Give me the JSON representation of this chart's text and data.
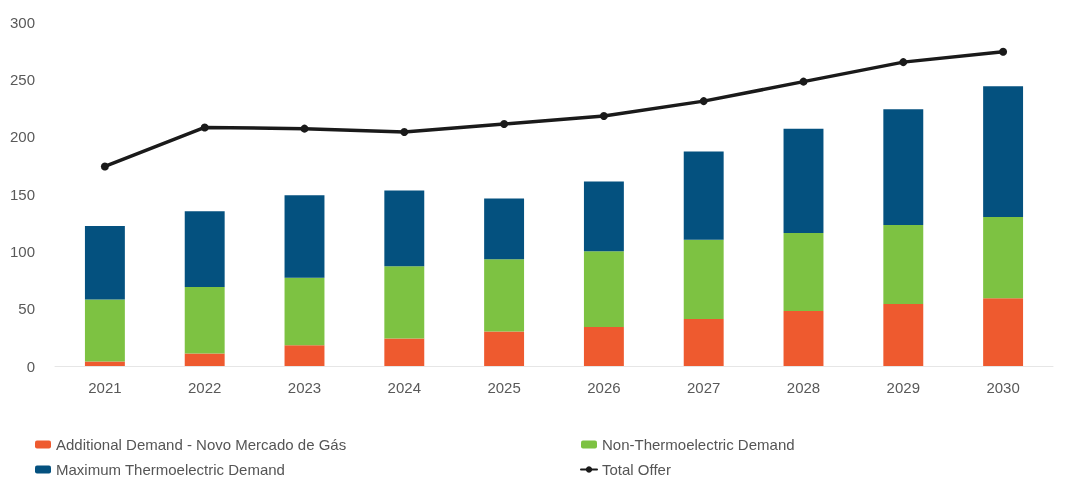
{
  "chart_data": {
    "type": "bar",
    "stacked": true,
    "categories": [
      "2021",
      "2022",
      "2023",
      "2024",
      "2025",
      "2026",
      "2027",
      "2028",
      "2029",
      "2030"
    ],
    "series": [
      {
        "name": "Additional Demand - Novo Mercado de Gás",
        "color": "#ee5a2f",
        "values": [
          4,
          11,
          18,
          24,
          30,
          34,
          41,
          48,
          54,
          59
        ]
      },
      {
        "name": "Non-Thermoelectric Demand",
        "color": "#7dc242",
        "values": [
          54,
          58,
          59,
          63,
          63,
          66,
          69,
          68,
          69,
          71
        ]
      },
      {
        "name": "Maximum Thermoelectric Demand",
        "color": "#04517f",
        "values": [
          64,
          66,
          72,
          66,
          53,
          61,
          77,
          91,
          101,
          114
        ]
      },
      {
        "name": "Total Offer",
        "type": "line",
        "color": "#1a1a1a",
        "values": [
          174,
          208,
          207,
          204,
          211,
          218,
          231,
          248,
          265,
          274
        ]
      }
    ],
    "ylim": [
      0,
      300
    ],
    "yticks": [
      0,
      50,
      100,
      150,
      200,
      250,
      300
    ],
    "grid": false,
    "legend": "bottom",
    "marker": "circle",
    "line_style": "solid"
  }
}
